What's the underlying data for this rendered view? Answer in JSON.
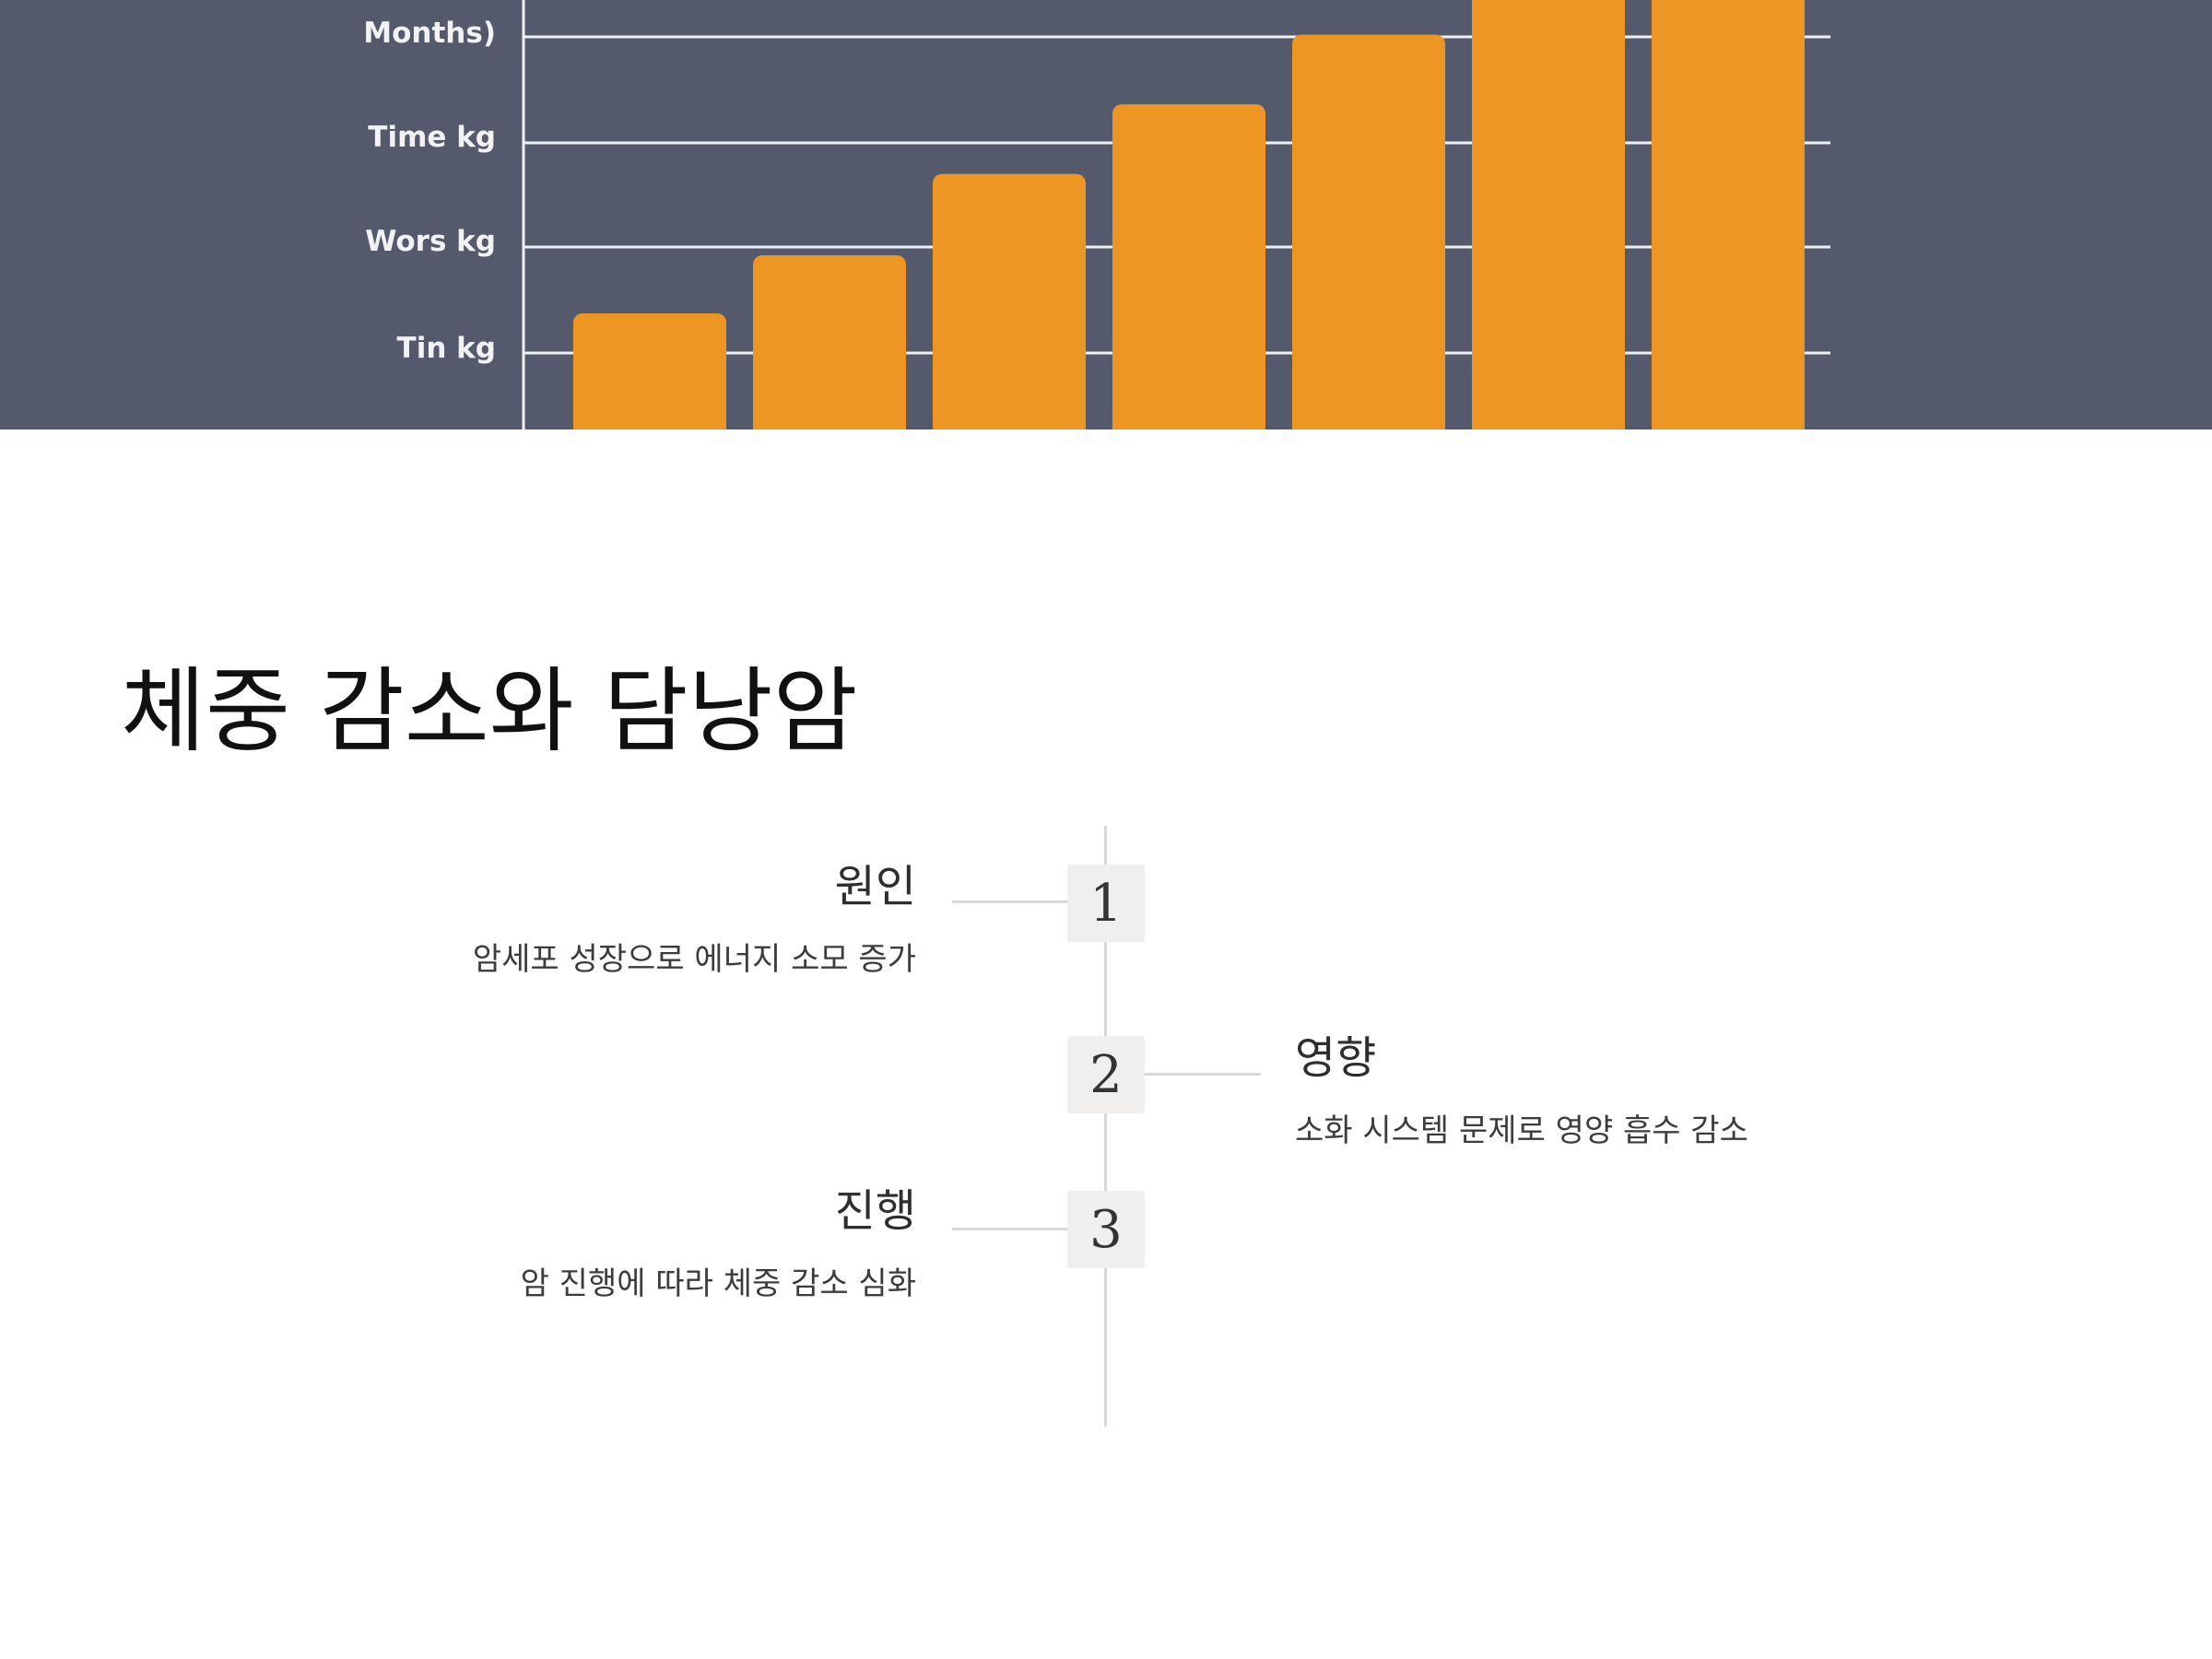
{
  "chart_image": {
    "background_color": "#545a6c",
    "bar_color": "#ee9623",
    "y_tick_labels": [
      "Months)",
      "Time kg",
      "Wors kg",
      "Tin kg"
    ],
    "bars": [
      {
        "value": 1.0
      },
      {
        "value": 1.5
      },
      {
        "value": 2.2
      },
      {
        "value": 2.8
      },
      {
        "value": 3.4
      },
      {
        "value": 4.5
      },
      {
        "value": 4.5
      }
    ]
  },
  "slide": {
    "title": "체중 감소와 담낭암"
  },
  "timeline": {
    "line_color": "#d8d8d8",
    "steps": [
      {
        "number": "1",
        "title": "원인",
        "description": "암세포 성장으로 에너지 소모 증가",
        "side": "left"
      },
      {
        "number": "2",
        "title": "영향",
        "description": "소화 시스템 문제로 영양 흡수 감소",
        "side": "right"
      },
      {
        "number": "3",
        "title": "진행",
        "description": "암 진행에 따라 체중 감소 심화",
        "side": "left"
      }
    ]
  }
}
